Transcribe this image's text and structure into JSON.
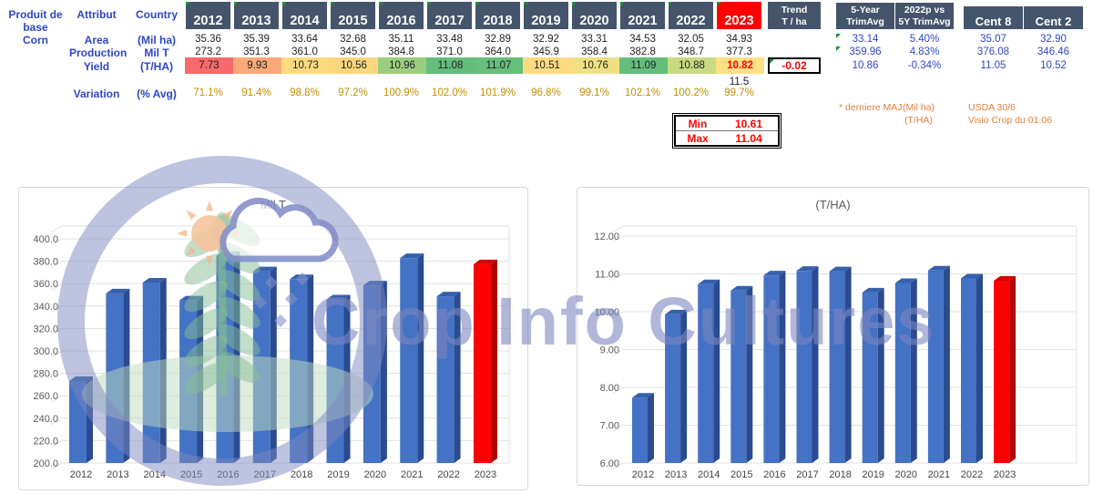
{
  "table": {
    "column_headers": {
      "product": "Produit de base",
      "attribute": "Attribut",
      "country": "Country"
    },
    "years": [
      "2012",
      "2013",
      "2014",
      "2015",
      "2016",
      "2017",
      "2018",
      "2019",
      "2020",
      "2021",
      "2022",
      "2023"
    ],
    "product": "Corn",
    "rows": {
      "area": {
        "label": "Area",
        "unit": "(Mil ha)",
        "values": [
          "35.36",
          "35.39",
          "33.64",
          "32.68",
          "35.11",
          "33.48",
          "32.89",
          "32.92",
          "33.31",
          "34.53",
          "32.05",
          "34.93"
        ]
      },
      "production": {
        "label": "Production",
        "unit": "Mil T",
        "values": [
          "273.2",
          "351.3",
          "361.0",
          "345.0",
          "384.8",
          "371.0",
          "364.0",
          "345.9",
          "358.4",
          "382.8",
          "348.7",
          "377.3"
        ]
      },
      "yield": {
        "label": "Yield",
        "unit": "(T/HA)",
        "values": [
          "7.73",
          "9.93",
          "10.73",
          "10.56",
          "10.96",
          "11.08",
          "11.07",
          "10.51",
          "10.76",
          "11.09",
          "10.88",
          "10.82"
        ],
        "cell_colors": [
          "#F8696B",
          "#FBAA77",
          "#FDDA7E",
          "#FDD77D",
          "#9ACE7E",
          "#63BE7B",
          "#66BF7B",
          "#FDDB80",
          "#EFE183",
          "#63BE7B",
          "#C9DA81",
          "#FFE083"
        ],
        "last_value_color": "#FF0000"
      },
      "variation": {
        "label": "Variation",
        "unit": "(% Avg)",
        "values": [
          "71.1%",
          "91.4%",
          "98.8%",
          "97.2%",
          "100.9%",
          "102.0%",
          "101.9%",
          "96.8%",
          "99.1%",
          "102.1%",
          "100.2%",
          "99.7%"
        ]
      }
    },
    "yield_2023_alt": "11.5",
    "trend": {
      "header_line1": "Trend",
      "header_line2": "T / ha",
      "value": "-0.02"
    },
    "stats": {
      "trimavg": {
        "header_line1": "5-Year",
        "header_line2": "TrimAvg",
        "values": [
          "33.14",
          "359.96",
          "10.86"
        ]
      },
      "vs": {
        "header_line1": "2022p vs",
        "header_line2": "5Y TrimAvg",
        "values": [
          "5.40%",
          "4.83%",
          "-0.34%"
        ]
      },
      "cent8": {
        "header": "Cent 8",
        "values": [
          "35.07",
          "376.08",
          "11.05"
        ]
      },
      "cent2": {
        "header": "Cent 2",
        "values": [
          "32.90",
          "346.46",
          "10.52"
        ]
      }
    },
    "minmax": {
      "min_label": "Min",
      "min_value": "10.61",
      "max_label": "Max",
      "max_value": "11.04"
    },
    "footnotes": {
      "maj": "* derniere MAJ",
      "unit1": "(Mil ha)",
      "unit2": "(T/HA)",
      "source1": "USDA 30/6",
      "source2": "Visio Crop du 01.06"
    }
  },
  "watermark": {
    "text": "Crop Info Cultures"
  },
  "colors": {
    "header_bg": "#44546A",
    "highlight_red": "#FF0000",
    "blue_text": "#2E46C4",
    "gold_text": "#BF8F00",
    "orange_text": "#E07E38",
    "grid": "#E1E1E1",
    "axis_text": "#595959",
    "bar_front": "#4472C4",
    "bar_side": "#2A4B8F",
    "bar_top": "#3660AA",
    "bar_red_front": "#FE0000",
    "bar_red_side": "#AF0202",
    "bar_red_top": "#D50000",
    "watermark_purple": "#7D87C0",
    "watermark_green": "#86BE96"
  },
  "chart_data": [
    {
      "type": "bar",
      "title": "Mil T",
      "categories": [
        "2012",
        "2013",
        "2014",
        "2015",
        "2016",
        "2017",
        "2018",
        "2019",
        "2020",
        "2021",
        "2022",
        "2023"
      ],
      "values": [
        273.2,
        351.3,
        361.0,
        345.0,
        384.8,
        371.0,
        364.0,
        345.9,
        358.4,
        382.8,
        348.7,
        377.3
      ],
      "xlabel": "",
      "ylabel": "",
      "ylim": [
        200,
        410
      ],
      "ytick_values": [
        400,
        380,
        360,
        340,
        320,
        300,
        280,
        260,
        240,
        220,
        200
      ],
      "ytick_labels": [
        "400.0",
        "380.0",
        "360.0",
        "340.0",
        "320.0",
        "300.0",
        "280.0",
        "260.0",
        "240.0",
        "220.0",
        "200.0"
      ],
      "grid": true,
      "legend": false,
      "highlight_index": 11
    },
    {
      "type": "bar",
      "title": "(T/HA)",
      "categories": [
        "2012",
        "2013",
        "2014",
        "2015",
        "2016",
        "2017",
        "2018",
        "2019",
        "2020",
        "2021",
        "2022",
        "2023"
      ],
      "values": [
        7.73,
        9.93,
        10.73,
        10.56,
        10.96,
        11.08,
        11.07,
        10.51,
        10.76,
        11.09,
        10.88,
        10.82
      ],
      "xlabel": "",
      "ylabel": "",
      "ylim": [
        6,
        12.5
      ],
      "ytick_values": [
        12,
        11,
        10,
        9,
        8,
        7,
        6
      ],
      "ytick_labels": [
        "12.00",
        "11.00",
        "10.00",
        "9.00",
        "8.00",
        "7.00",
        "6.00"
      ],
      "grid": true,
      "legend": false,
      "highlight_index": 11
    }
  ]
}
